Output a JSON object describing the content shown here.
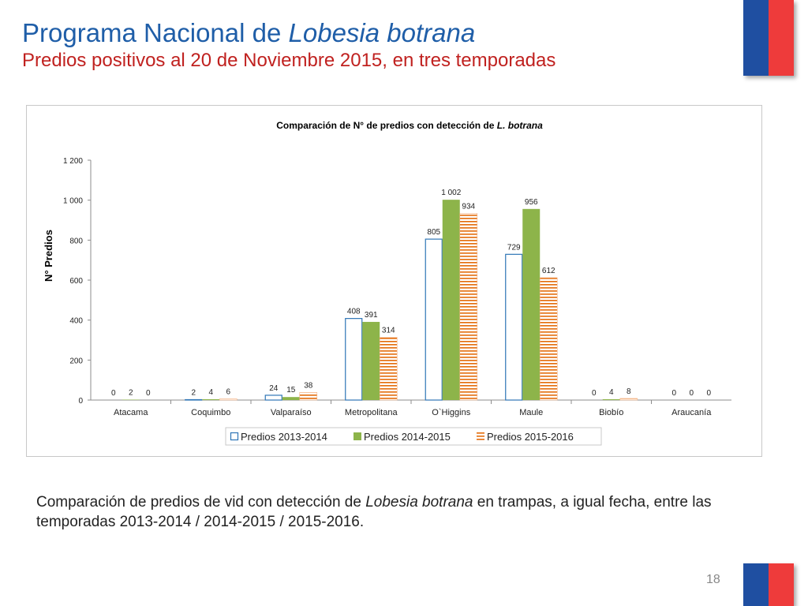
{
  "slide": {
    "title_plain": "Programa Nacional de ",
    "title_italic": "Lobesia botrana",
    "subtitle": "Predios positivos al 20 de Noviembre 2015, en tres temporadas",
    "caption_part1": "Comparación de predios de vid con detección  de ",
    "caption_italic": "Lobesia botrana",
    "caption_part2": " en trampas, a igual fecha, entre las temporadas 2013-2014 / 2014-2015 / 2015-2016.",
    "page_number": "18",
    "colors": {
      "title": "#1f5ea8",
      "subtitle": "#c0211f",
      "flag_blue": "#1f4fa1",
      "flag_red": "#ee3b3b"
    }
  },
  "chart_data": {
    "type": "bar",
    "title_plain": "Comparación de N° de predios con detección de ",
    "title_italic": "L. botrana",
    "xlabel": "",
    "ylabel": "N° Predios",
    "ylim": [
      0,
      1200
    ],
    "yticks": [
      0,
      200,
      400,
      600,
      800,
      1000,
      1200
    ],
    "ytick_labels": [
      "0",
      "200",
      "400",
      "600",
      "800",
      "1 000",
      "1 200"
    ],
    "categories": [
      "Atacama",
      "Coquimbo",
      "Valparaíso",
      "Metropolitana",
      "O`Higgins",
      "Maule",
      "Biobío",
      "Araucanía"
    ],
    "series": [
      {
        "name": "Predios 2013-2014",
        "style": "outline",
        "color": "#2e75b6",
        "values": [
          0,
          2,
          24,
          408,
          805,
          729,
          0,
          0
        ],
        "labels": [
          "0",
          "2",
          "24",
          "408",
          "805",
          "729",
          "0",
          "0"
        ]
      },
      {
        "name": "Predios 2014-2015",
        "style": "solid",
        "color": "#8db44a",
        "values": [
          2,
          4,
          15,
          391,
          1002,
          956,
          4,
          0
        ],
        "labels": [
          "2",
          "4",
          "15",
          "391",
          "1 002",
          "956",
          "4",
          "0"
        ]
      },
      {
        "name": "Predios 2015-2016",
        "style": "hatched",
        "color": "#e46c0a",
        "values": [
          0,
          6,
          38,
          314,
          934,
          612,
          8,
          0
        ],
        "labels": [
          "0",
          "6",
          "38",
          "314",
          "934",
          "612",
          "8",
          "0"
        ]
      }
    ],
    "legend_position": "bottom",
    "grid": false
  }
}
